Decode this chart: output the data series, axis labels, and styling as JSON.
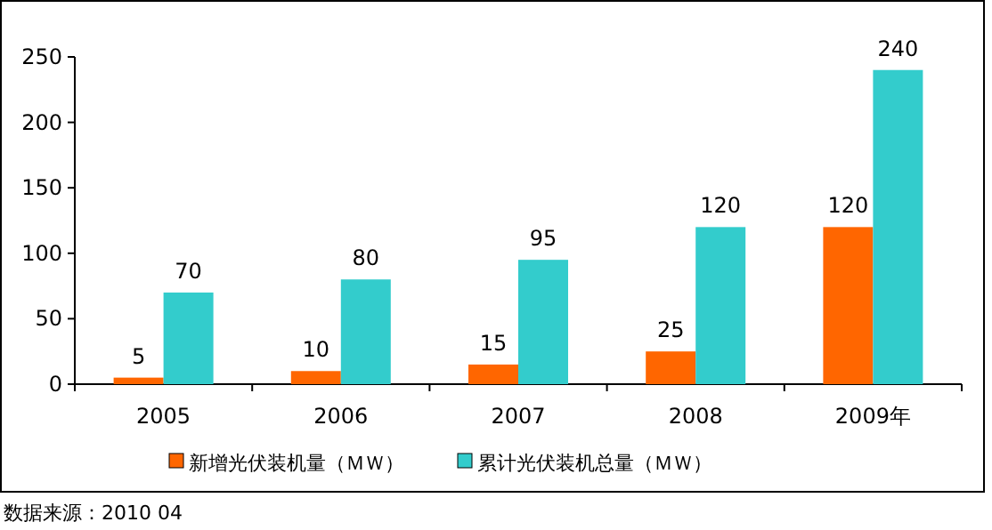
{
  "chart_data": {
    "type": "bar",
    "categories": [
      "2005",
      "2006",
      "2007",
      "2008",
      "2009年"
    ],
    "series": [
      {
        "name": "新增光伏装机量（ＭＷ）",
        "color": "#ff6600",
        "values": [
          5,
          10,
          15,
          25,
          120
        ]
      },
      {
        "name": "累计光伏装机总量（ＭＷ）",
        "color": "#33cccc",
        "values": [
          70,
          80,
          95,
          120,
          240
        ]
      }
    ],
    "ylim": [
      0,
      250
    ],
    "yticks": [
      0,
      50,
      100,
      150,
      200,
      250
    ],
    "data_labels": true,
    "grid": false,
    "legend": "bottom",
    "annotations": [
      "数据来源：2010 04"
    ]
  }
}
